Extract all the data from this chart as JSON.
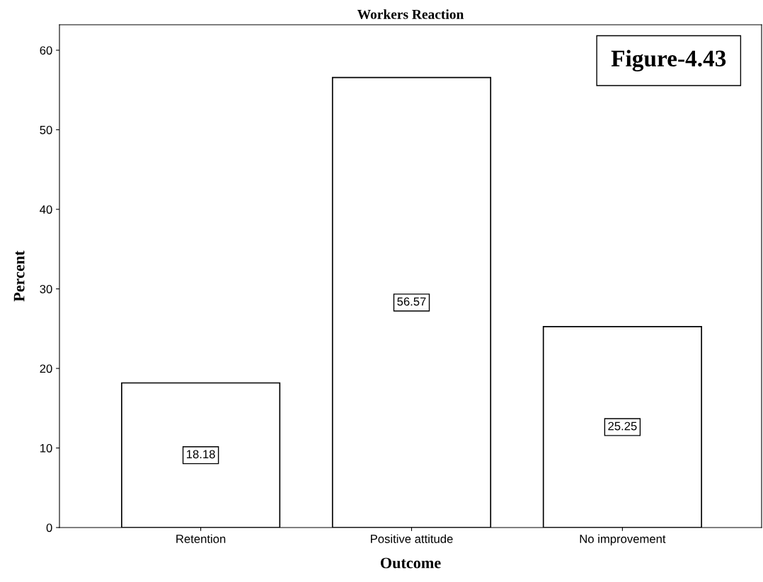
{
  "chart_data": {
    "type": "bar",
    "title": "Workers Reaction",
    "xlabel": "Outcome",
    "ylabel": "Percent",
    "categories": [
      "Retention",
      "Positive attitude",
      "No improvement"
    ],
    "values": [
      18.18,
      56.57,
      25.25
    ],
    "color": "#ffffff",
    "ylim": [
      0,
      63.2
    ],
    "yticks": [
      0,
      10,
      20,
      30,
      40,
      50,
      60
    ],
    "grid": false,
    "data_labels": true,
    "annotations": [
      "Figure-4.43"
    ]
  }
}
